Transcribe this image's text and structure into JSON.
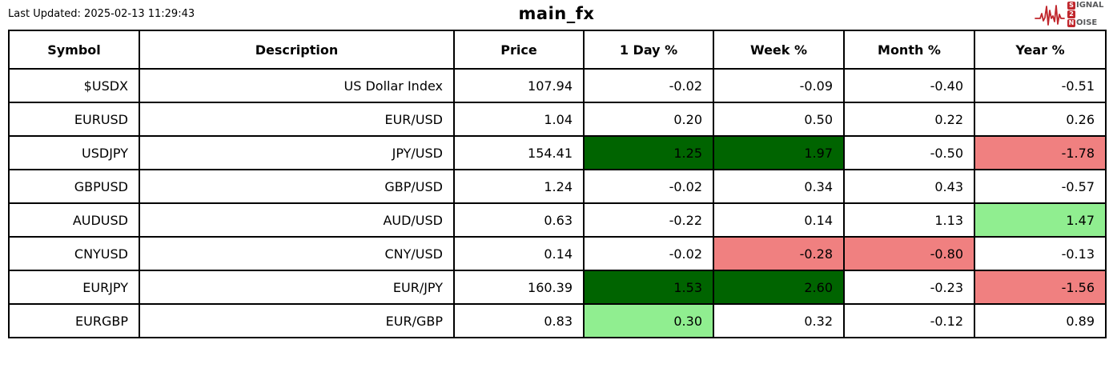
{
  "header": {
    "last_updated": "Last Updated: 2025-02-13 11:29:43",
    "title": "main_fx"
  },
  "logo": {
    "line1_initial": "S",
    "line1_rest": "IGNAL",
    "line2": "2",
    "line3_initial": "N",
    "line3_rest": "OISE",
    "accent_color": "#C0272D",
    "text_color": "#58595B"
  },
  "colors": {
    "strong_gain_bg": "#006400",
    "gain_bg": "#90EE90",
    "loss_bg": "#F08080",
    "border": "#000000",
    "text": "#000000"
  },
  "chart_data": {
    "type": "table",
    "title": "main_fx",
    "columns": [
      "Symbol",
      "Description",
      "Price",
      "1 Day %",
      "Week %",
      "Month %",
      "Year %"
    ],
    "rows": [
      [
        "$USDX",
        "US Dollar Index",
        "107.94",
        "-0.02",
        "-0.09",
        "-0.40",
        "-0.51"
      ],
      [
        "EURUSD",
        "EUR/USD",
        "1.04",
        "0.20",
        "0.50",
        "0.22",
        "0.26"
      ],
      [
        "USDJPY",
        "JPY/USD",
        "154.41",
        "1.25",
        "1.97",
        "-0.50",
        "-1.78"
      ],
      [
        "GBPUSD",
        "GBP/USD",
        "1.24",
        "-0.02",
        "0.34",
        "0.43",
        "-0.57"
      ],
      [
        "AUDUSD",
        "AUD/USD",
        "0.63",
        "-0.22",
        "0.14",
        "1.13",
        "1.47"
      ],
      [
        "CNYUSD",
        "CNY/USD",
        "0.14",
        "-0.02",
        "-0.28",
        "-0.80",
        "-0.13"
      ],
      [
        "EURJPY",
        "EUR/JPY",
        "160.39",
        "1.53",
        "2.60",
        "-0.23",
        "-1.56"
      ],
      [
        "EURGBP",
        "EUR/GBP",
        "0.83",
        "0.30",
        "0.32",
        "-0.12",
        "0.89"
      ]
    ],
    "cell_highlights": [
      [
        "",
        "",
        "",
        "",
        "",
        "",
        ""
      ],
      [
        "",
        "",
        "",
        "",
        "",
        "",
        ""
      ],
      [
        "",
        "",
        "",
        "strong_gain",
        "strong_gain",
        "",
        "loss"
      ],
      [
        "",
        "",
        "",
        "",
        "",
        "",
        ""
      ],
      [
        "",
        "",
        "",
        "",
        "",
        "",
        "gain"
      ],
      [
        "",
        "",
        "",
        "",
        "loss",
        "loss",
        ""
      ],
      [
        "",
        "",
        "",
        "strong_gain",
        "strong_gain",
        "",
        "loss"
      ],
      [
        "",
        "",
        "",
        "gain",
        "",
        "",
        ""
      ]
    ]
  }
}
